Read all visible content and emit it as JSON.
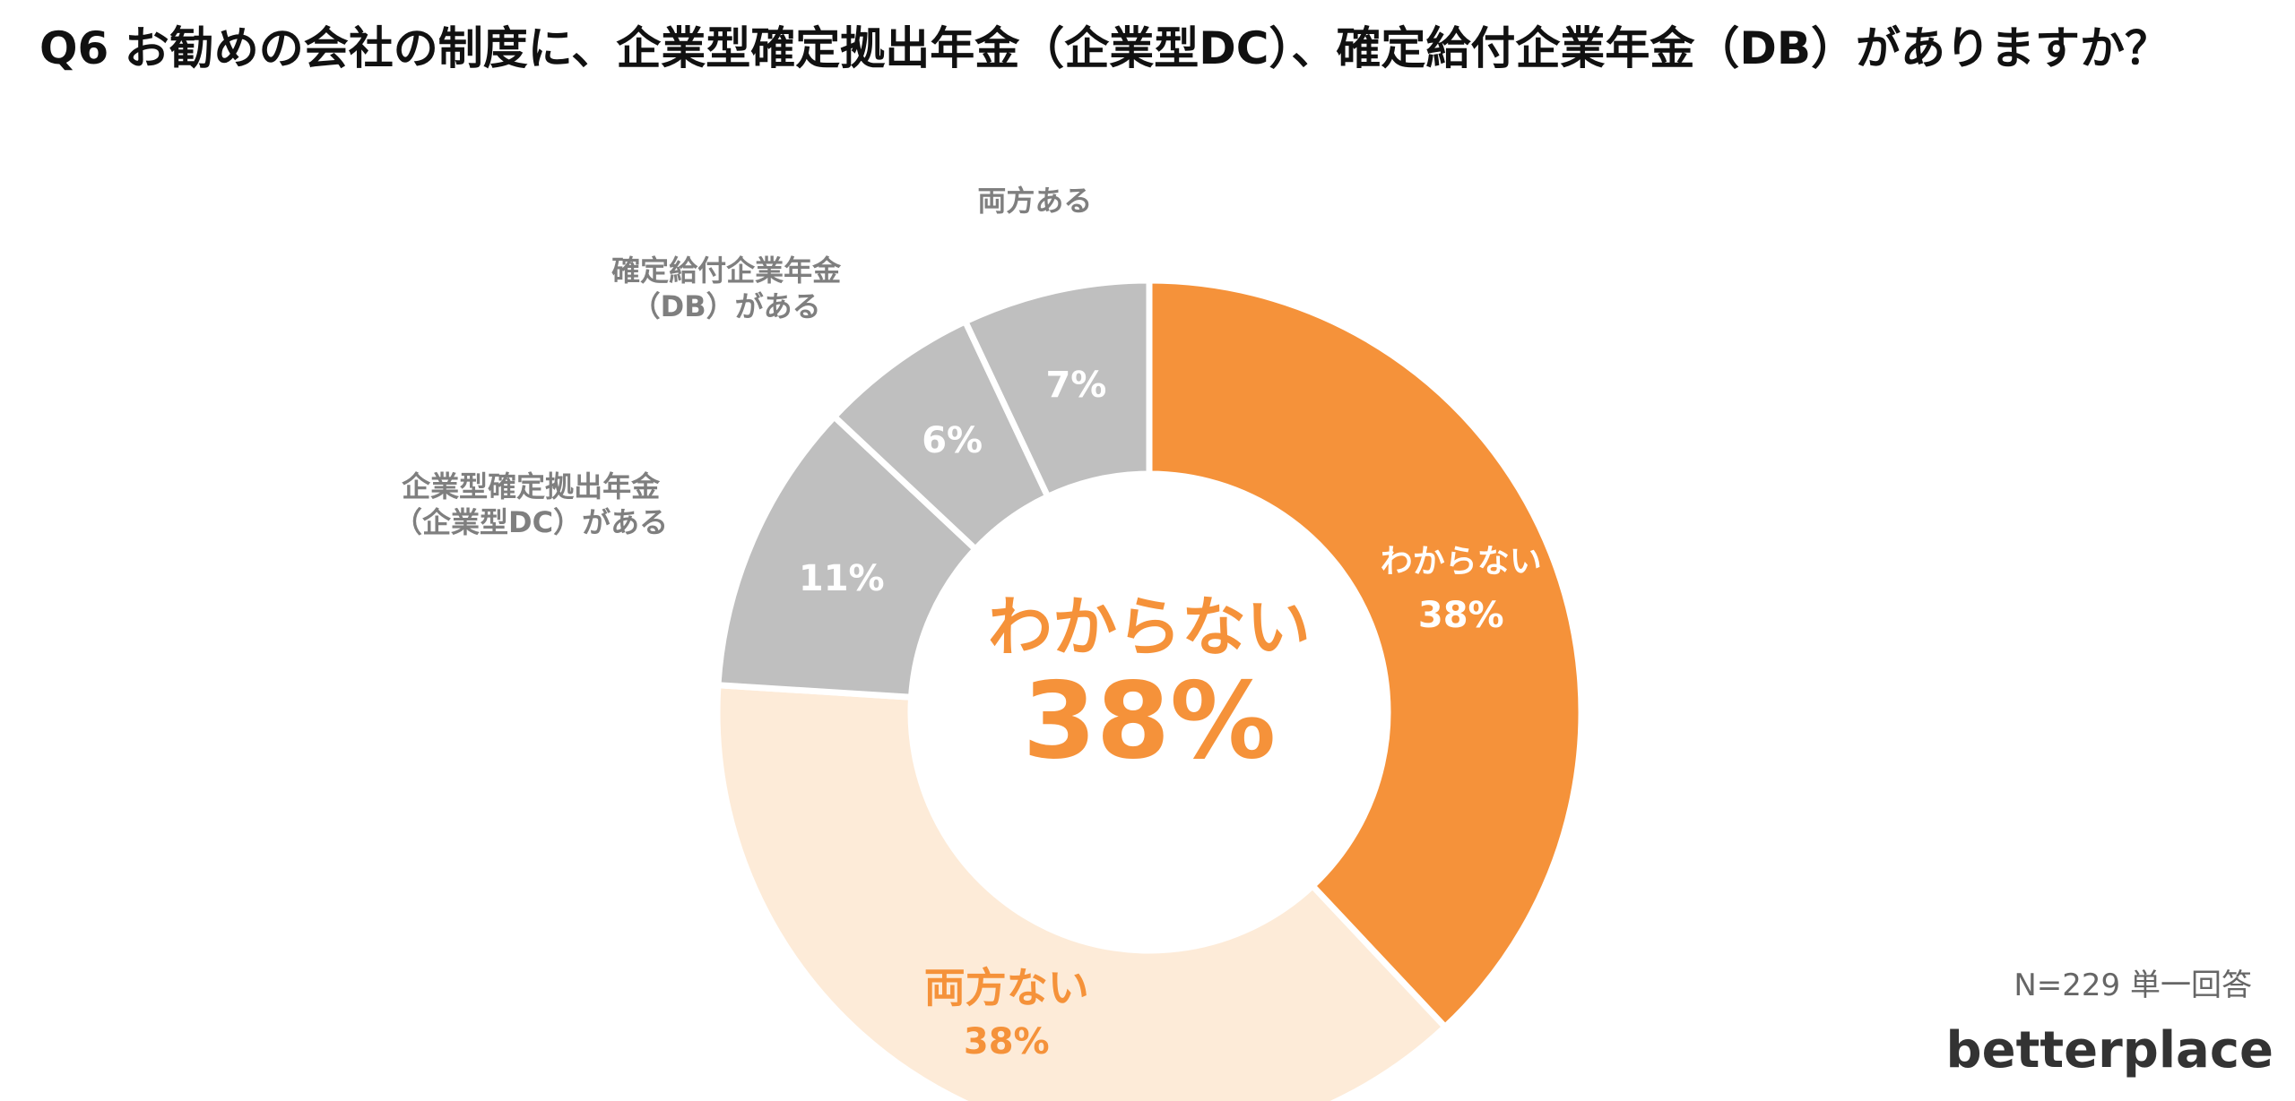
{
  "chart_data": {
    "type": "donut",
    "title": "Q6 お勧めの会社の制度に、企業型確定拠出年金（企業型DC）、確定給付企業年金（DB）がありますか？",
    "categories": [
      "わからない",
      "両方ない",
      "企業型確定拠出年金\n（企業型DC）がある",
      "確定給付企業年金\n（DB）がある",
      "両方ある"
    ],
    "values": [
      38,
      38,
      11,
      6,
      7
    ],
    "value_labels": [
      "38%",
      "38%",
      "11%",
      "6%",
      "7%"
    ],
    "colors": [
      "#f5923a",
      "#fdebd8",
      "#bfbfbf",
      "#bfbfbf",
      "#bfbfbf"
    ],
    "note": "N=229 単一回答",
    "logo": "betterplace"
  }
}
